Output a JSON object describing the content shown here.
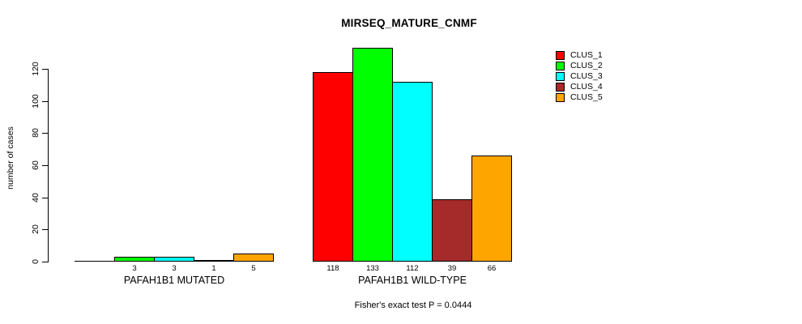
{
  "title": "MIRSEQ_MATURE_CNMF",
  "footer": "Fisher's exact test P = 0.0444",
  "y_axis": {
    "label": "number of cases",
    "ticks": [
      0,
      20,
      40,
      60,
      80,
      100,
      120
    ]
  },
  "legend": {
    "items": [
      {
        "label": "CLUS_1",
        "color": "#FF0000"
      },
      {
        "label": "CLUS_2",
        "color": "#00FF00"
      },
      {
        "label": "CLUS_3",
        "color": "#00FFFF"
      },
      {
        "label": "CLUS_4",
        "color": "#A52A2A"
      },
      {
        "label": "CLUS_5",
        "color": "#FFA500"
      }
    ]
  },
  "chart_data": {
    "type": "bar",
    "title": "MIRSEQ_MATURE_CNMF",
    "categories": [
      "PAFAH1B1 MUTATED",
      "PAFAH1B1 WILD-TYPE"
    ],
    "series": [
      {
        "name": "CLUS_1",
        "color": "#FF0000",
        "values": [
          0,
          118
        ]
      },
      {
        "name": "CLUS_2",
        "color": "#00FF00",
        "values": [
          3,
          133
        ]
      },
      {
        "name": "CLUS_3",
        "color": "#00FFFF",
        "values": [
          3,
          112
        ]
      },
      {
        "name": "CLUS_4",
        "color": "#A52A2A",
        "values": [
          1,
          39
        ]
      },
      {
        "name": "CLUS_5",
        "color": "#FFA500",
        "values": [
          5,
          66
        ]
      }
    ],
    "bar_labels": [
      [
        "",
        "3",
        "3",
        "1",
        "5"
      ],
      [
        "118",
        "133",
        "112",
        "39",
        "66"
      ]
    ],
    "xlabel": "",
    "ylabel": "number of cases",
    "ylim": [
      0,
      120
    ],
    "grid": false,
    "legend_position": "top-right",
    "annotation": "Fisher's exact test P = 0.0444"
  }
}
